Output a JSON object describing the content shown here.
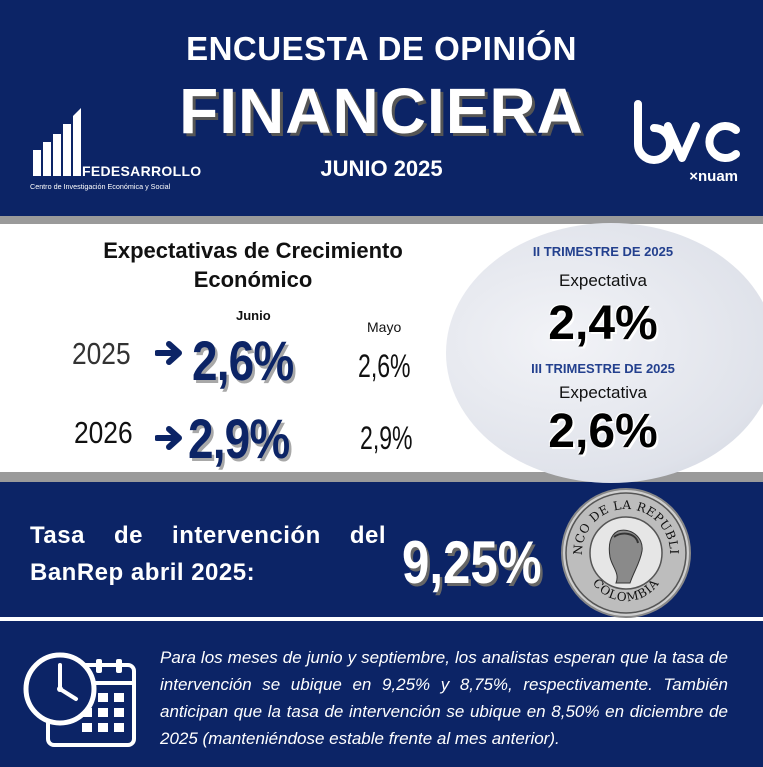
{
  "header": {
    "title_line1": "ENCUESTA DE OPINIÓN",
    "title_line2": "FINANCIERA",
    "date": "JUNIO 2025",
    "left_logo": {
      "name": "FEDESARROLLO",
      "subtitle": "Centro de Investigación Económica y Social"
    },
    "right_logo": {
      "name": "bvc",
      "subtitle": "×nuam"
    }
  },
  "growth": {
    "title": "Expectativas de Crecimiento Económico",
    "current_label": "Junio",
    "previous_label": "Mayo",
    "rows": [
      {
        "year": "2025",
        "current": "2,6%",
        "previous": "2,6%"
      },
      {
        "year": "2026",
        "current": "2,9%",
        "previous": "2,9%"
      }
    ]
  },
  "quarters": [
    {
      "title": "II TRIMESTRE DE 2025",
      "label": "Expectativa",
      "value": "2,4%"
    },
    {
      "title": "III TRIMESTRE DE 2025",
      "label": "Expectativa",
      "value": "2,6%"
    }
  ],
  "rate": {
    "label_line1": "Tasa de intervención del",
    "label_line2": "BanRep abril 2025:",
    "value": "9,25%",
    "seal_top_text": "BANCO DE LA REPUBLICA",
    "seal_bottom_text": "COLOMBIA"
  },
  "note": "Para los meses de junio y septiembre, los analistas esperan que la tasa de intervención se ubique en 9,25% y 8,75%, respectivamente. También anticipan que la tasa de intervención se ubique en 8,50% en diciembre de 2025 (manteniéndose estable frente al mes anterior).",
  "colors": {
    "navy": "#0c2466",
    "accent_blue": "#23408e",
    "gray": "#9a9a9a"
  }
}
